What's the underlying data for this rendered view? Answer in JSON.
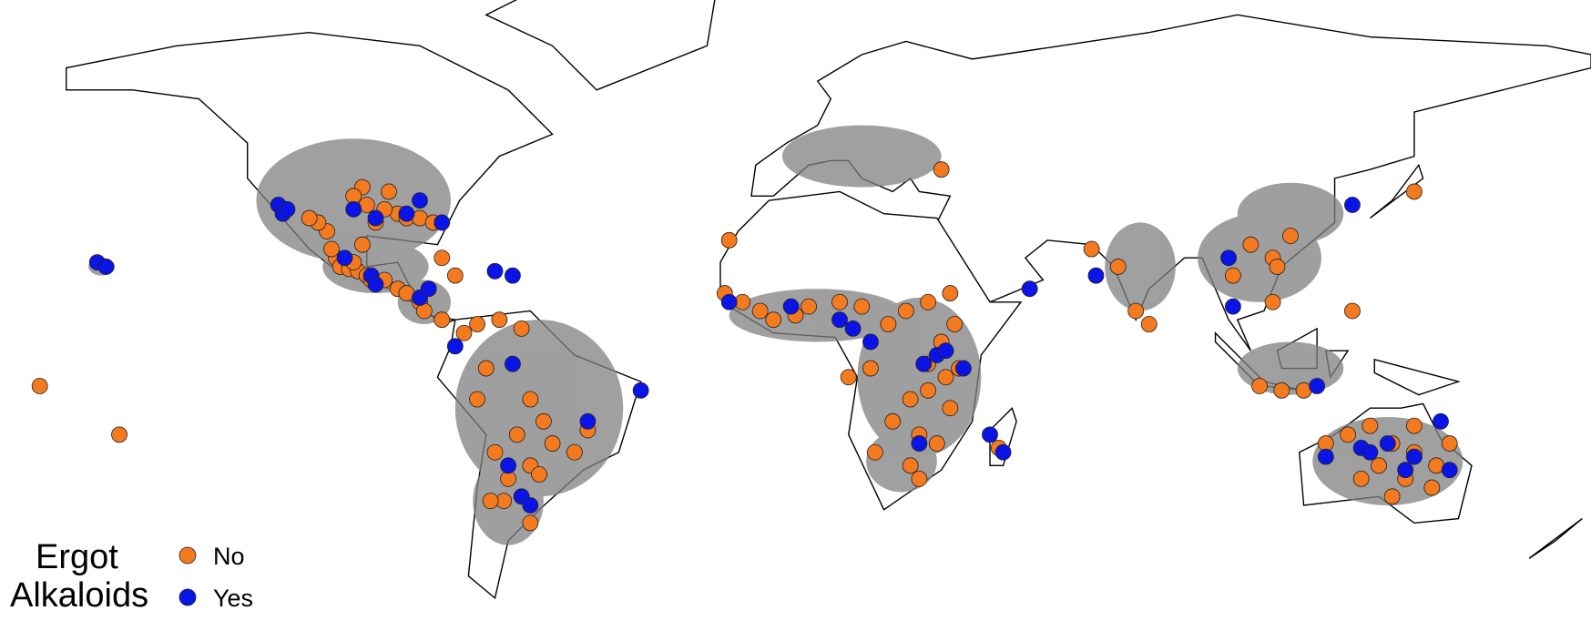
{
  "chart_data": {
    "type": "scatter",
    "legend_title": [
      "Ergot",
      "Alkaloids"
    ],
    "legend_position": "bottom-left",
    "series": [
      {
        "name": "No",
        "color": "#f47a20",
        "x": [
          -104,
          -103,
          -101,
          -99,
          -97,
          -100,
          -105,
          -106,
          -108,
          -110,
          -98,
          -96,
          -93,
          -90,
          -88,
          -85,
          -84,
          -80,
          -95,
          -90,
          -88,
          -85,
          -82,
          -98,
          -97,
          -100,
          -92,
          -93,
          -80,
          -77,
          -75,
          -72,
          -67,
          -62,
          -70,
          -60,
          -57,
          -55,
          -50,
          -47,
          -63,
          -68,
          -60,
          -58,
          -65,
          -66,
          -69,
          -60,
          -72,
          -16,
          -12,
          -8,
          -5,
          0,
          3,
          10,
          15,
          -15,
          21,
          25,
          30,
          35,
          36,
          33,
          30,
          34,
          37,
          30,
          26,
          35,
          22,
          28,
          32,
          18,
          26,
          46,
          17,
          12,
          28,
          33,
          67,
          73,
          77,
          80,
          103,
          108,
          112,
          109,
          126,
          99,
          108,
          140,
          105,
          110,
          115,
          120,
          125,
          130,
          135,
          140,
          145,
          132,
          138,
          128,
          144,
          135,
          148,
          140,
          -171,
          -153
        ],
        "values": [
          22,
          20,
          19.5,
          19,
          18,
          21,
          24,
          28,
          30,
          31,
          25,
          17,
          17,
          15,
          14,
          12,
          10,
          8,
          30,
          32,
          31,
          31,
          30,
          38,
          34,
          36,
          37,
          33,
          22,
          18,
          5,
          7,
          8,
          6,
          -3,
          -10,
          -15,
          -20,
          -22,
          -17,
          -18,
          -22,
          -25,
          -27,
          -28,
          -33,
          -33,
          -38,
          -10,
          14,
          12,
          10,
          8,
          9,
          11,
          12,
          11,
          26,
          7,
          10,
          12,
          14,
          7,
          3,
          -2,
          -5,
          -3,
          -8,
          -10,
          -12,
          -15,
          -18,
          -20,
          -22,
          -25,
          -21,
          -3,
          -5,
          -28,
          42,
          24,
          20,
          10,
          7,
          25,
          22,
          27,
          20,
          10,
          18,
          12,
          37,
          -7,
          -8,
          -8,
          -20,
          -18,
          -16,
          -20,
          -22,
          -25,
          -25,
          -28,
          -28,
          -30,
          -32,
          -20,
          -16,
          -7,
          -18
        ]
      },
      {
        "name": "Yes",
        "color": "#0a14e6",
        "x": [
          -117,
          -116,
          -115,
          -100,
          -95,
          -88,
          -85,
          -80,
          -96,
          -102,
          -95,
          -85,
          -83,
          -68,
          -64,
          -158,
          -156,
          -77,
          -64,
          -47,
          -35,
          -65,
          -62,
          -60,
          -1,
          -15,
          10,
          13,
          17,
          32,
          34,
          29,
          38,
          28,
          44,
          47,
          53,
          68,
          98,
          99,
          126,
          118,
          128,
          134,
          140,
          146,
          138,
          120,
          148,
          130
        ],
        "values": [
          34,
          32,
          33,
          33,
          31,
          32,
          35,
          30,
          18,
          22,
          16,
          13,
          15,
          19,
          18,
          21,
          20,
          2,
          -2,
          -15,
          -8,
          -25,
          -32,
          -34,
          11,
          12,
          8,
          6,
          3,
          0,
          1,
          -2,
          -3,
          -20,
          -18,
          -22,
          15,
          18,
          22,
          11,
          34,
          -7,
          -21,
          -20,
          -23,
          -15,
          -26,
          -23,
          -26,
          -22
        ]
      }
    ]
  }
}
